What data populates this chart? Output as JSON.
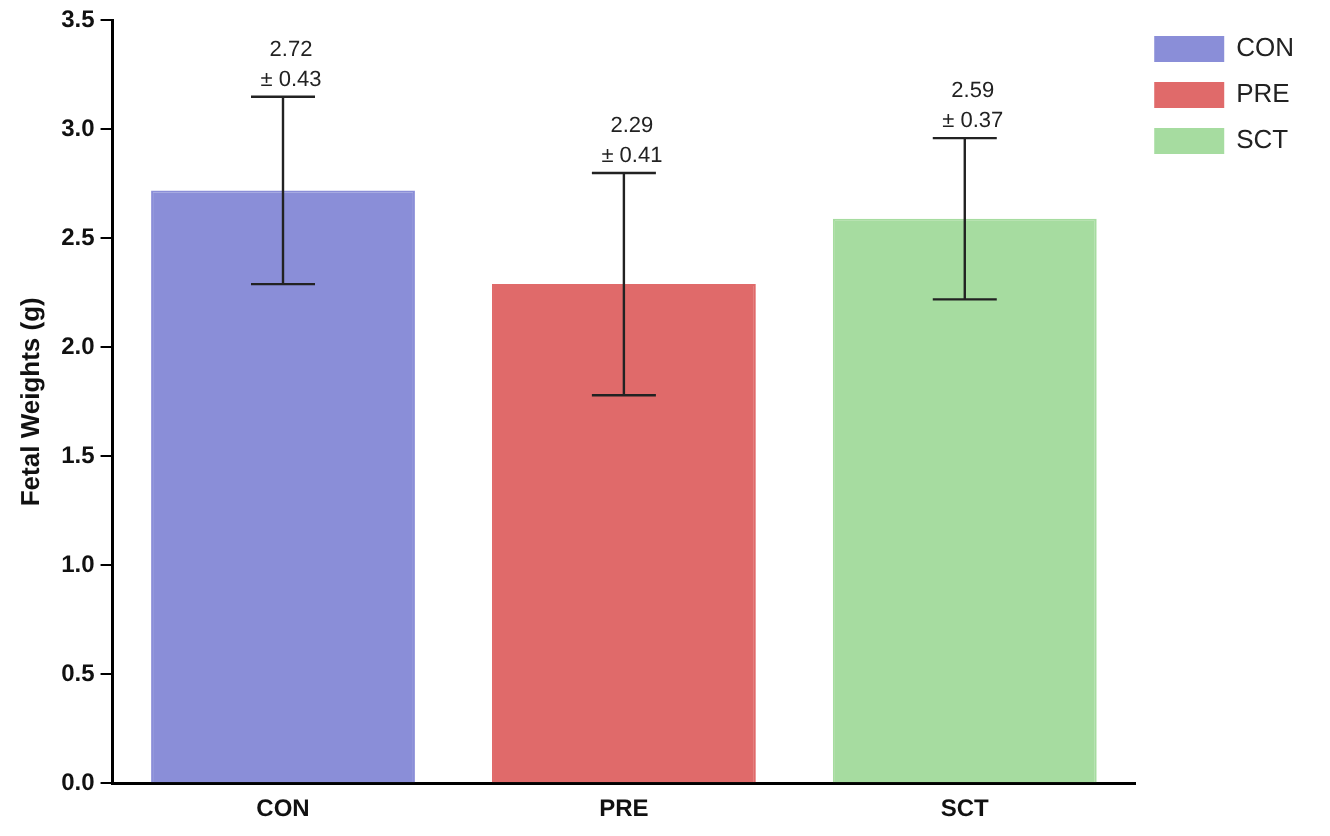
{
  "chart_data": {
    "type": "bar",
    "ylabel": "Fetal Weights (g)",
    "categories": [
      "CON",
      "PRE",
      "SCT"
    ],
    "series": [
      {
        "name": "CON",
        "color": "#8a8ed8",
        "values": [
          2.72,
          null,
          null
        ],
        "errors": [
          0.43,
          null,
          null
        ]
      },
      {
        "name": "PRE",
        "color": "#e06a6a",
        "values": [
          null,
          2.29,
          null
        ],
        "errors": [
          null,
          0.51,
          null
        ]
      },
      {
        "name": "SCT",
        "color": "#a6dca0",
        "values": [
          null,
          null,
          2.59
        ],
        "errors": [
          null,
          null,
          0.37
        ]
      }
    ],
    "annotations": [
      {
        "text": "2.72\n± 0.43",
        "x": "CON",
        "y": 3.15
      },
      {
        "text": "2.29\n± 0.41",
        "x": "PRE",
        "y": 2.8
      },
      {
        "text": "2.59\n± 0.37",
        "x": "SCT",
        "y": 2.96
      }
    ],
    "ylim": [
      0,
      3.5
    ],
    "yticks": [
      {
        "value": 0,
        "label": "0.0"
      },
      {
        "value": 0.5,
        "label": "0.5"
      },
      {
        "value": 1,
        "label": "1.0"
      },
      {
        "value": 1.5,
        "label": "1.5"
      },
      {
        "value": 2,
        "label": "2.0"
      },
      {
        "value": 2.5,
        "label": "2.5"
      },
      {
        "value": 3,
        "label": "3.0"
      },
      {
        "value": 3.5,
        "label": "3.5"
      }
    ],
    "grid": false,
    "legend": "right"
  }
}
